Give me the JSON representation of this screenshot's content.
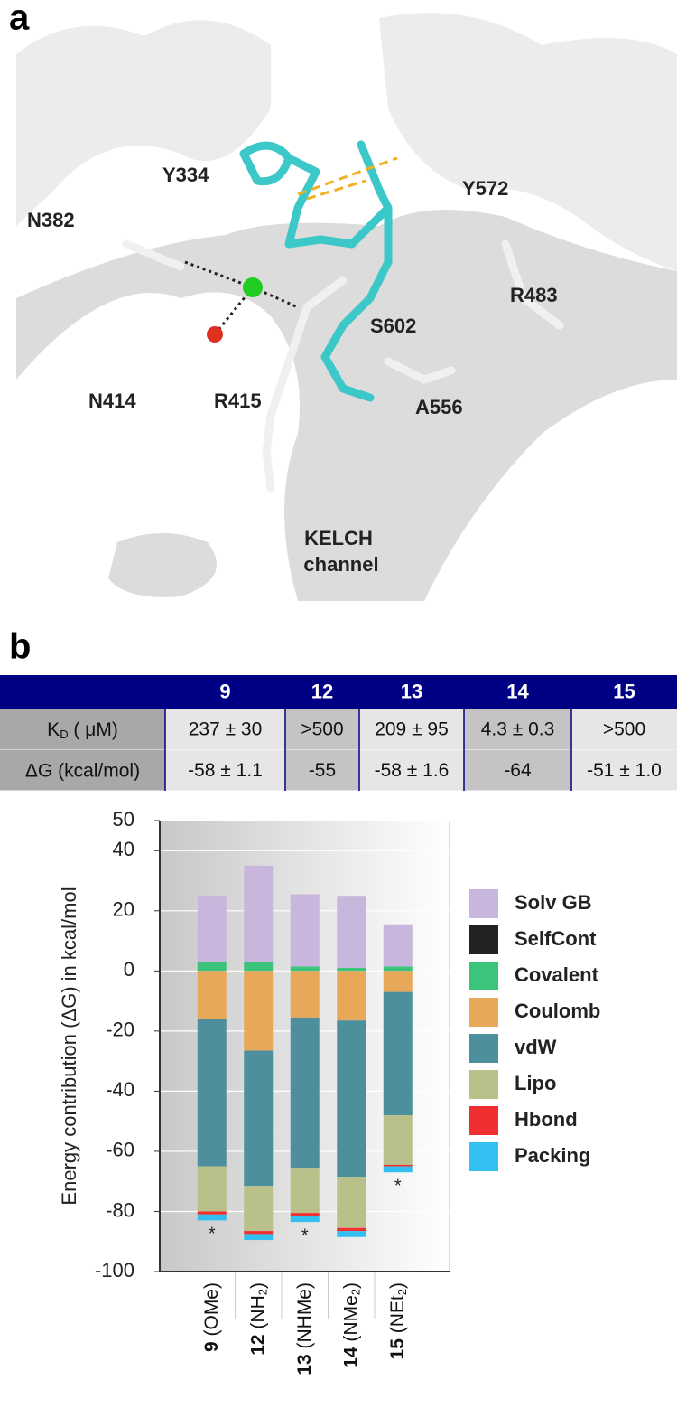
{
  "panel_a": {
    "label": "a",
    "residues": [
      {
        "name": "Y334"
      },
      {
        "name": "N382"
      },
      {
        "name": "Y572"
      },
      {
        "name": "R483"
      },
      {
        "name": "S602"
      },
      {
        "name": "N414"
      },
      {
        "name": "R415"
      },
      {
        "name": "A556"
      }
    ],
    "channel_label": [
      "KELCH",
      "channel"
    ]
  },
  "panel_b": {
    "label": "b",
    "table": {
      "header": [
        "9",
        "12",
        "13",
        "14",
        "15"
      ],
      "rows": [
        {
          "label": [
            "K",
            "D",
            " ( μM)"
          ],
          "cells": [
            "237 ± 30",
            ">500",
            "209 ± 95",
            "4.3 ± 0.3",
            ">500"
          ]
        },
        {
          "label": [
            "ΔG (kcal/mol)"
          ],
          "cells": [
            "-58 ± 1.1",
            "-55",
            "-58 ± 1.6",
            "-64",
            "-51 ± 1.0"
          ]
        }
      ]
    }
  },
  "chart_data": {
    "type": "stacked-bar",
    "y_label": "Energy contribution (ΔG) in kcal/mol",
    "categories": [
      "9 (OMe)",
      "12 (NH2)",
      "13 (NHMe)",
      "14 (NMe2)",
      "15 (NEt2)"
    ],
    "series": [
      {
        "name": "Solv GB",
        "color": "#c8b6dc",
        "values": [
          22,
          32,
          24,
          24,
          14
        ]
      },
      {
        "name": "SelfCont",
        "color": "#222222",
        "values": [
          0,
          0,
          0,
          0,
          0
        ]
      },
      {
        "name": "Covalent",
        "color": "#3cc47c",
        "values": [
          3,
          3,
          1.5,
          1,
          1.5
        ]
      },
      {
        "name": "Coulomb",
        "color": "#e8a85a",
        "values": [
          -16,
          -26.5,
          -15.5,
          -16.5,
          -7
        ]
      },
      {
        "name": "vdW",
        "color": "#4e8f9e",
        "values": [
          -49,
          -45,
          -50,
          -52,
          -41
        ]
      },
      {
        "name": "Lipo",
        "color": "#b9c08a",
        "values": [
          -15,
          -15,
          -15,
          -17,
          -16.5
        ]
      },
      {
        "name": "Hbond",
        "color": "#f03030",
        "values": [
          -1,
          -1,
          -1,
          -1,
          -0.5
        ]
      },
      {
        "name": "Packing",
        "color": "#33c0f0",
        "values": [
          -2,
          -2,
          -2,
          -2,
          -2
        ]
      }
    ],
    "annotations": [
      "*",
      null,
      "*",
      null,
      "*"
    ],
    "ylim": [
      -100,
      50
    ],
    "yticks": [
      -100,
      -80,
      -60,
      -40,
      -20,
      0,
      20,
      40,
      50
    ],
    "grid": true
  }
}
